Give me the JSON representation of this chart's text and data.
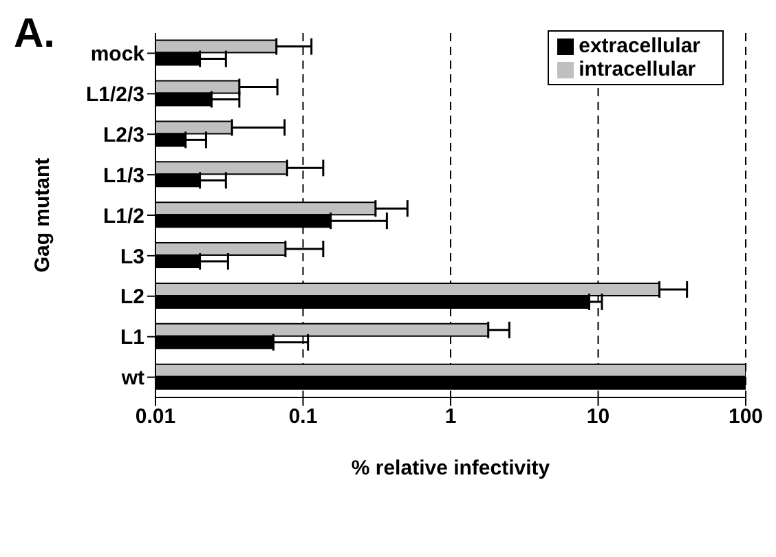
{
  "chart_data": {
    "type": "bar",
    "orientation": "horizontal",
    "title": "A.",
    "xlabel": "% relative infectivity",
    "ylabel": "Gag mutant",
    "categories": [
      "mock",
      "L1/2/3",
      "L2/3",
      "L1/3",
      "L1/2",
      "L3",
      "L2",
      "L1",
      "wt"
    ],
    "series": [
      {
        "name": "intracellular",
        "color": "#c0c0c0",
        "values": [
          0.066,
          0.037,
          0.033,
          0.078,
          0.31,
          0.076,
          26,
          1.8,
          100
        ],
        "errors": [
          [
            0.066,
            0.114
          ],
          [
            0.037,
            0.067
          ],
          [
            0.033,
            0.075
          ],
          [
            0.078,
            0.137
          ],
          [
            0.31,
            0.51
          ],
          [
            0.076,
            0.137
          ],
          [
            26,
            40
          ],
          [
            1.8,
            2.5
          ],
          null
        ]
      },
      {
        "name": "extracellular",
        "color": "#000000",
        "values": [
          0.02,
          0.024,
          0.016,
          0.02,
          0.154,
          0.02,
          8.7,
          0.063,
          100
        ],
        "errors": [
          [
            0.02,
            0.03
          ],
          [
            0.024,
            0.037
          ],
          [
            0.016,
            0.022
          ],
          [
            0.02,
            0.03
          ],
          [
            0.154,
            0.37
          ],
          [
            0.02,
            0.031
          ],
          [
            8.7,
            10.6
          ],
          [
            0.063,
            0.108
          ],
          null
        ]
      }
    ],
    "log": "x",
    "xlim": [
      0.01,
      100
    ],
    "xticks": [
      0.01,
      0.1,
      1,
      10,
      100
    ],
    "grid": "x",
    "line_style": "dashed",
    "legend": "top right"
  }
}
